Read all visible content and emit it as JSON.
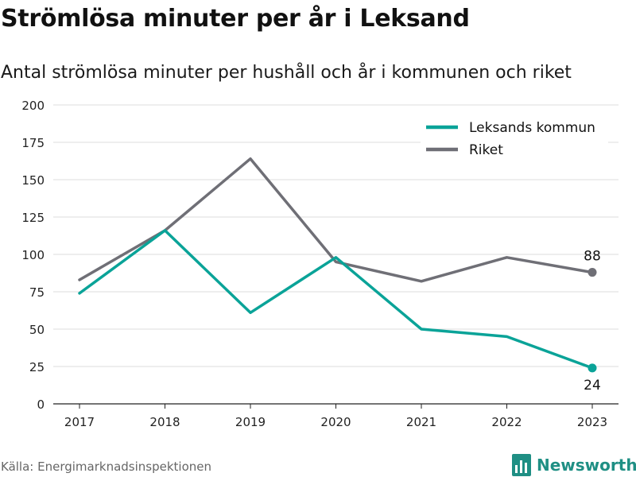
{
  "header": {
    "title": "Strömlösa minuter per år i Leksand",
    "subtitle": "Antal strömlösa minuter per hushåll och år i kommunen och riket"
  },
  "footer": {
    "source": "Källa: Energimarknadsinspektionen",
    "brand": "Newsworthy"
  },
  "colors": {
    "kommun": "#0aa398",
    "riket": "#6f6f76",
    "grid": "#dcdcdc",
    "axis": "#222222",
    "brand": "#1f8f84"
  },
  "chart_data": {
    "type": "line",
    "title": "Strömlösa minuter per år i Leksand",
    "subtitle": "Antal strömlösa minuter per hushåll och år i kommunen och riket",
    "categories": [
      "2017",
      "2018",
      "2019",
      "2020",
      "2021",
      "2022",
      "2023"
    ],
    "yticks": [
      0,
      25,
      50,
      75,
      100,
      125,
      150,
      175,
      200
    ],
    "ylim": [
      0,
      200
    ],
    "grid": true,
    "legend_position": "top-right",
    "series": [
      {
        "name": "Leksands kommun",
        "color": "#0aa398",
        "values": [
          74,
          116,
          61,
          98,
          50,
          45,
          24
        ],
        "end_label": "24",
        "end_label_position": "below"
      },
      {
        "name": "Riket",
        "color": "#6f6f76",
        "values": [
          83,
          116,
          164,
          95,
          82,
          98,
          88
        ],
        "end_label": "88",
        "end_label_position": "above"
      }
    ]
  }
}
